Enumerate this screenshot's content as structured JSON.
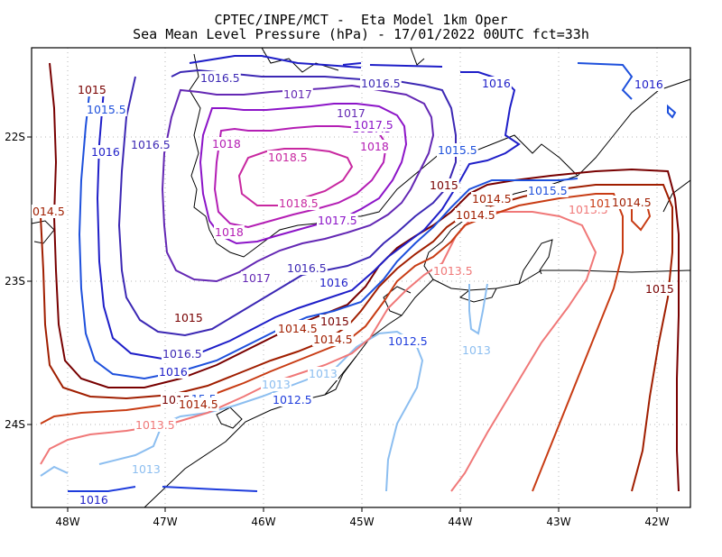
{
  "header": {
    "line1": "CPTEC/INPE/MCT -  Eta Model 1km Oper",
    "line2": "Sea Mean Level Pressure (hPa) - 17/01/2022 00UTC fct=33h"
  },
  "axes": {
    "x_ticks": [
      "48W",
      "47W",
      "46W",
      "45W",
      "44W",
      "43W",
      "42W"
    ],
    "y_ticks": [
      "22S",
      "23S",
      "24S"
    ],
    "lon_range": [
      -48.3,
      -41.7
    ],
    "lat_range": [
      -21.6,
      -24.6
    ],
    "grid": "dotted"
  },
  "contour_levels": [
    {
      "level": 1012.5,
      "color": "#1e3cdc"
    },
    {
      "level": 1013,
      "color": "#8cbef0"
    },
    {
      "level": 1013.5,
      "color": "#f07878"
    },
    {
      "level": 1014,
      "color": "#c83c14"
    },
    {
      "level": 1014.5,
      "color": "#a01e00"
    },
    {
      "level": 1015,
      "color": "#780000"
    },
    {
      "level": 1015.5,
      "color": "#1e50dc"
    },
    {
      "level": 1016,
      "color": "#1e1ec8"
    },
    {
      "level": 1016.5,
      "color": "#3c28b4"
    },
    {
      "level": 1017,
      "color": "#6428b4"
    },
    {
      "level": 1017.5,
      "color": "#8c14c8"
    },
    {
      "level": 1018,
      "color": "#b41eb4"
    },
    {
      "level": 1018.5,
      "color": "#c828a0"
    }
  ],
  "contour_labels": [
    {
      "text": "1015",
      "color": "#780000"
    },
    {
      "text": "1015.5",
      "color": "#1e50dc"
    },
    {
      "text": "1016",
      "color": "#1e1ec8"
    },
    {
      "text": "1016.5",
      "color": "#3c28b4"
    },
    {
      "text": "1016",
      "color": "#1e1ec8"
    },
    {
      "text": "1016.5",
      "color": "#3c28b4"
    },
    {
      "text": "1017",
      "color": "#6428b4"
    },
    {
      "text": "1017.5",
      "color": "#8c14c8"
    },
    {
      "text": "1018",
      "color": "#b41eb4"
    },
    {
      "text": "1018.5",
      "color": "#c828a0"
    },
    {
      "text": "1018.5",
      "color": "#c828a0"
    },
    {
      "text": "1018",
      "color": "#b41eb4"
    },
    {
      "text": "1017.5",
      "color": "#8c14c8"
    },
    {
      "text": "1017",
      "color": "#6428b4"
    },
    {
      "text": "1016.5",
      "color": "#3c28b4"
    },
    {
      "text": "1016",
      "color": "#1e1ec8"
    },
    {
      "text": "1015.5",
      "color": "#1e50dc"
    },
    {
      "text": "1015",
      "color": "#780000"
    },
    {
      "text": "1014.5",
      "color": "#a01e00"
    },
    {
      "text": "1014",
      "color": "#c83c14"
    },
    {
      "text": "1013.5",
      "color": "#f07878"
    },
    {
      "text": "1013",
      "color": "#8cbef0"
    },
    {
      "text": "1012.5",
      "color": "#1e3cdc"
    },
    {
      "text": "1016.5",
      "color": "#3c28b4"
    },
    {
      "text": "1016",
      "color": "#1e1ec8"
    },
    {
      "text": "1015.5",
      "color": "#1e50dc"
    },
    {
      "text": "1015",
      "color": "#780000"
    },
    {
      "text": "1014.5",
      "color": "#a01e00"
    },
    {
      "text": "1014",
      "color": "#c83c14"
    },
    {
      "text": "1013.5",
      "color": "#f07878"
    },
    {
      "text": "1013",
      "color": "#8cbef0"
    },
    {
      "text": "1012.5",
      "color": "#1e3cdc"
    },
    {
      "text": "1016",
      "color": "#1e1ec8"
    },
    {
      "text": "1016.5",
      "color": "#3c28b4"
    },
    {
      "text": "1017",
      "color": "#6428b4"
    },
    {
      "text": "1017.5",
      "color": "#8c14c8"
    },
    {
      "text": "1018",
      "color": "#b41eb4"
    },
    {
      "text": "1016",
      "color": "#1e1ec8"
    },
    {
      "text": "1016",
      "color": "#1e1ec8"
    },
    {
      "text": "1015.5",
      "color": "#1e50dc"
    },
    {
      "text": "1015.5",
      "color": "#1e50dc"
    },
    {
      "text": "1015",
      "color": "#780000"
    },
    {
      "text": "1014.5",
      "color": "#a01e00"
    },
    {
      "text": "1015",
      "color": "#780000"
    },
    {
      "text": "1014.5",
      "color": "#a01e00"
    },
    {
      "text": "1014.5",
      "color": "#a01e00"
    },
    {
      "text": "1014.5",
      "color": "#a01e00"
    },
    {
      "text": "1013.5",
      "color": "#f07878"
    },
    {
      "text": "101",
      "color": "#c83c14"
    },
    {
      "text": "1015",
      "color": "#780000"
    },
    {
      "text": "1013",
      "color": "#8cbef0"
    },
    {
      "text": "1013",
      "color": "#8cbef0"
    },
    {
      "text": "014.5",
      "color": "#a01e00"
    }
  ]
}
